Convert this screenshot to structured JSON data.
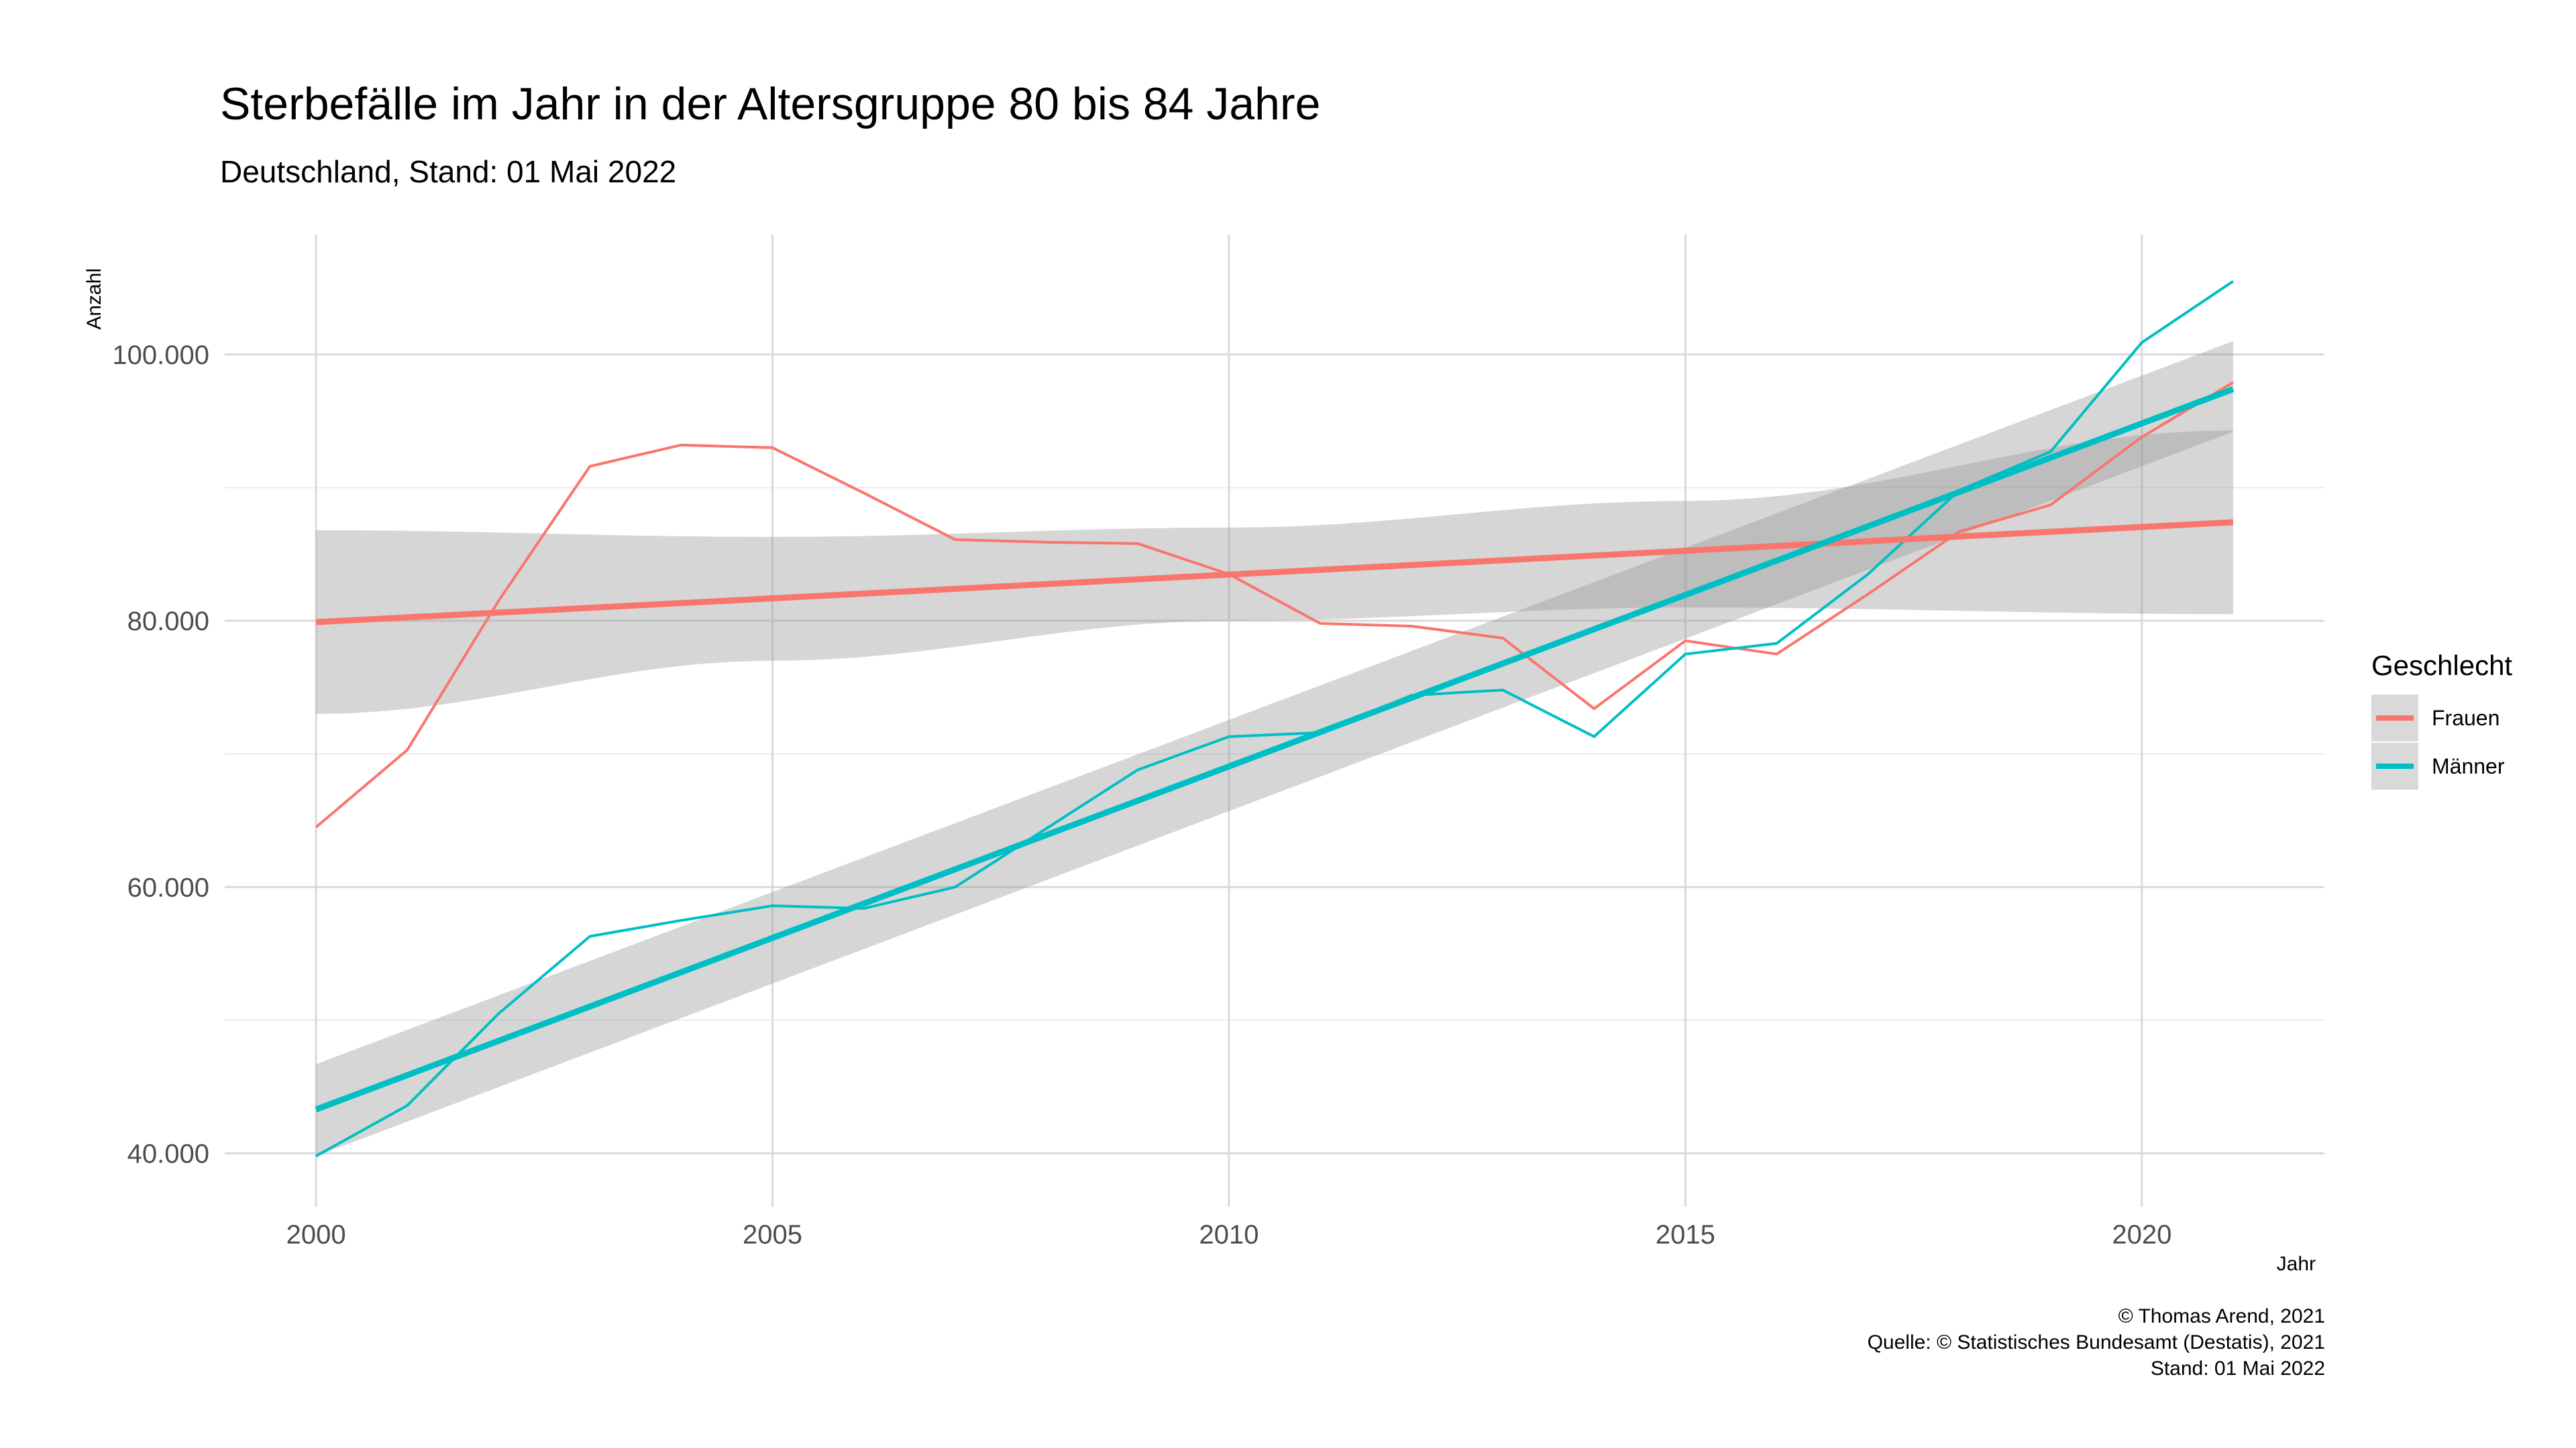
{
  "chart_data": {
    "type": "line",
    "title": "Sterbefälle im Jahr in der Altersgruppe 80 bis 84 Jahre",
    "subtitle": "Deutschland, Stand: 01 Mai 2022",
    "xlabel": "Jahr",
    "ylabel": "Anzahl",
    "xlim": [
      1999,
      2022
    ],
    "ylim": [
      36000,
      109000
    ],
    "x_ticks": [
      2000,
      2005,
      2010,
      2015,
      2020
    ],
    "x_tick_labels": [
      "2000",
      "2005",
      "2010",
      "2015",
      "2020"
    ],
    "y_ticks": [
      40000,
      60000,
      80000,
      100000
    ],
    "y_tick_labels": [
      "40.000",
      "60.000",
      "80.000",
      "100.000"
    ],
    "y_minor_ticks": [
      50000,
      70000,
      90000
    ],
    "grid": true,
    "legend": {
      "title": "Geschlecht",
      "placement": "right",
      "entries": [
        {
          "name": "Frauen",
          "color": "#F8766D"
        },
        {
          "name": "Männer",
          "color": "#00BFC4"
        }
      ]
    },
    "x": [
      2000,
      2001,
      2002,
      2003,
      2004,
      2005,
      2006,
      2007,
      2008,
      2009,
      2010,
      2011,
      2012,
      2013,
      2014,
      2015,
      2016,
      2017,
      2018,
      2019,
      2020,
      2021
    ],
    "series": [
      {
        "name": "Frauen",
        "color": "#F8766D",
        "values": [
          64500,
          70300,
          81500,
          91600,
          93200,
          93000,
          89600,
          86100,
          85900,
          85800,
          83500,
          79800,
          79600,
          78700,
          73400,
          78500,
          77500,
          82000,
          86700,
          88700,
          93800,
          97900
        ],
        "trend": {
          "start": 79900,
          "end": 87400
        },
        "ribbon": {
          "x": [
            2000,
            2005,
            2010,
            2015,
            2021
          ],
          "lower": [
            73000,
            77000,
            80000,
            81000,
            80500
          ],
          "upper": [
            86800,
            86300,
            87000,
            89000,
            94300
          ]
        }
      },
      {
        "name": "Männer",
        "color": "#00BFC4",
        "values": [
          39800,
          43600,
          50500,
          56300,
          57500,
          58600,
          58400,
          60000,
          64400,
          68800,
          71300,
          71600,
          74400,
          74800,
          71300,
          77500,
          78300,
          83500,
          89800,
          92700,
          100900,
          105500
        ],
        "trend": {
          "start": 43300,
          "end": 97400
        },
        "ribbon": {
          "x": [
            2000,
            2021
          ],
          "lower": [
            39800,
            94200
          ],
          "upper": [
            46700,
            101000
          ]
        }
      }
    ]
  },
  "caption": [
    "© Thomas Arend, 2021",
    "Quelle: © Statistisches Bundesamt (Destatis), 2021",
    "Stand: 01 Mai 2022"
  ]
}
